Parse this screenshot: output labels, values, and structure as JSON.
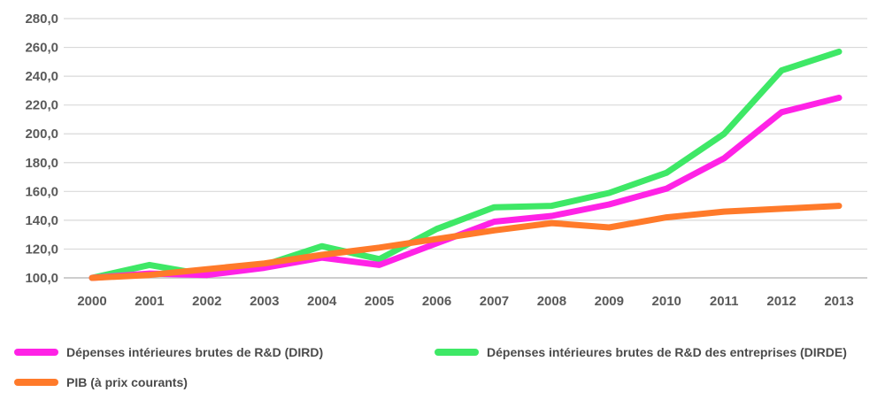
{
  "chart_data": {
    "type": "line",
    "x": [
      "2000",
      "2001",
      "2002",
      "2003",
      "2004",
      "2005",
      "2006",
      "2007",
      "2008",
      "2009",
      "2010",
      "2011",
      "2012",
      "2013"
    ],
    "yticks": [
      "100,0",
      "120,0",
      "140,0",
      "160,0",
      "180,0",
      "200,0",
      "220,0",
      "240,0",
      "260,0",
      "280,0"
    ],
    "ylim": [
      100,
      280
    ],
    "grid": true,
    "legend_position": "bottom",
    "series": [
      {
        "name": "Dépenses intérieures brutes de R&D (DIRD)",
        "color": "#ff22e6",
        "values": [
          100,
          103,
          102,
          107,
          114,
          109,
          124,
          139,
          143,
          151,
          162,
          183,
          215,
          225
        ]
      },
      {
        "name": "Dépenses intérieures brutes de R&D des entreprises (DIRDE)",
        "color": "#3ee866",
        "values": [
          100,
          109,
          102,
          109,
          122,
          113,
          134,
          149,
          150,
          159,
          173,
          200,
          244,
          257
        ]
      },
      {
        "name": "PIB (à prix courants)",
        "color": "#ff7a2a",
        "values": [
          100,
          102,
          106,
          110,
          116,
          121,
          127,
          133,
          138,
          135,
          142,
          146,
          148,
          150
        ]
      }
    ]
  }
}
